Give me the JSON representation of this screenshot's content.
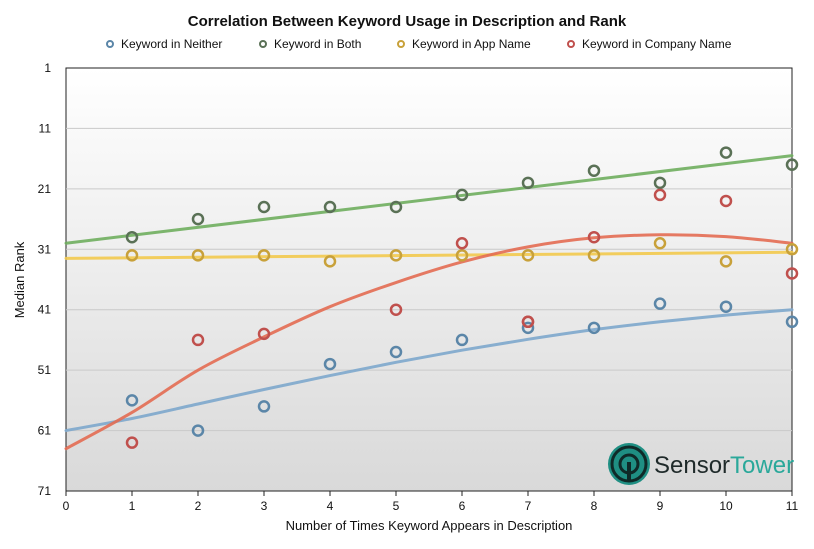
{
  "chart_data": {
    "type": "scatter",
    "title": "Correlation Between Keyword Usage in Description and Rank",
    "xlabel": "Number of Times Keyword Appears in Description",
    "ylabel": "Median Rank",
    "xlim": [
      0,
      11
    ],
    "ylim": [
      71,
      1
    ],
    "y_reversed": true,
    "x_ticks": [
      0,
      1,
      2,
      3,
      4,
      5,
      6,
      7,
      8,
      9,
      10,
      11
    ],
    "y_ticks": [
      1,
      11,
      21,
      31,
      41,
      51,
      61,
      71
    ],
    "grid": "horizontal",
    "legend_position": "top",
    "x": [
      1,
      2,
      3,
      4,
      5,
      6,
      7,
      8,
      9,
      10,
      11
    ],
    "series": [
      {
        "name": "Keyword in Neither",
        "color": "#5b86a8",
        "values": [
          56,
          61,
          57,
          50,
          48,
          46,
          44,
          44,
          40,
          40.5,
          43
        ],
        "trend": [
          [
            0,
            61
          ],
          [
            1,
            59
          ],
          [
            2,
            56.6
          ],
          [
            3,
            54.2
          ],
          [
            4,
            51.9
          ],
          [
            5,
            49.7
          ],
          [
            6,
            47.7
          ],
          [
            7,
            45.9
          ],
          [
            8,
            44.3
          ],
          [
            9,
            43
          ],
          [
            10,
            41.9
          ],
          [
            11,
            41
          ]
        ],
        "trend_color": "#7da7cc"
      },
      {
        "name": "Keyword in Both",
        "color": "#5a7156",
        "values": [
          29,
          26,
          24,
          24,
          24,
          22,
          20,
          18,
          20,
          15,
          17
        ],
        "trend": [
          [
            0,
            30
          ],
          [
            11,
            15.5
          ]
        ],
        "trend_color": "#6fae5e"
      },
      {
        "name": "Keyword in App Name",
        "color": "#c8a13a",
        "values": [
          32,
          32,
          32,
          33,
          32,
          32,
          32,
          32,
          30,
          33,
          31
        ],
        "trend": [
          [
            0,
            32.5
          ],
          [
            11,
            31.5
          ]
        ],
        "trend_color": "#f2c94c"
      },
      {
        "name": "Keyword in Company Name",
        "color": "#c0504d",
        "values": [
          63,
          46,
          45,
          null,
          41,
          30,
          43,
          null,
          22,
          23,
          35
        ],
        "trend": [
          [
            0,
            64
          ],
          [
            1,
            58
          ],
          [
            2,
            51
          ],
          [
            3,
            45.5
          ],
          [
            4,
            40.5
          ],
          [
            5,
            36.5
          ],
          [
            6,
            33.1
          ],
          [
            7,
            30.6
          ],
          [
            8,
            29.1
          ],
          [
            9,
            28.6
          ],
          [
            10,
            28.9
          ],
          [
            11,
            30
          ]
        ],
        "trend_color": "#e36b52"
      }
    ],
    "extra_points": [
      {
        "series": "Keyword in Company Name",
        "x": 7,
        "y": 43
      },
      {
        "series": "Keyword in Company Name",
        "x": 8,
        "y": 29
      }
    ]
  },
  "logo": {
    "brand_first": "Sensor",
    "brand_second": "Tower",
    "icon": "sensortower-logo-icon",
    "color_first": "#1f2a2a",
    "color_second": "#2aa89a"
  }
}
